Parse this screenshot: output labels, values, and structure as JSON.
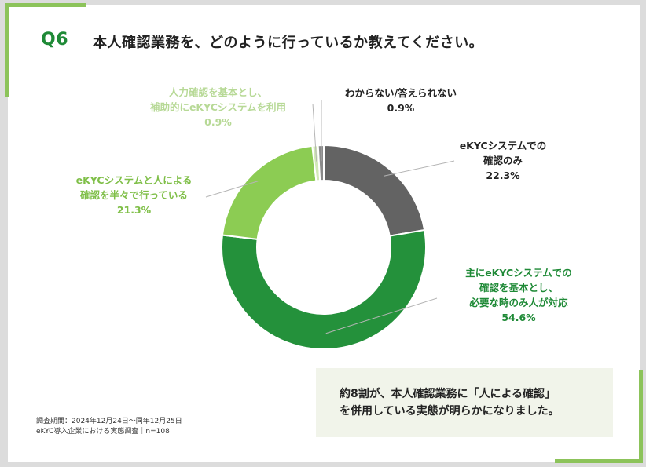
{
  "question": {
    "number": "Q6",
    "title": "本人確認業務を、どのように行っているか教えてください。"
  },
  "chart_data": {
    "type": "pie",
    "variant": "donut",
    "title": "本人確認業務を、どのように行っているか教えてください。",
    "slices": [
      {
        "lines": [
          "eKYCシステムでの",
          "確認のみ"
        ],
        "value": 22.3,
        "value_label": "22.3%",
        "color": "#636363",
        "label_color": "#222222"
      },
      {
        "lines": [
          "主にeKYCシステムでの",
          "確認を基本とし、",
          "必要な時のみ人が対応"
        ],
        "value": 54.6,
        "value_label": "54.6%",
        "color": "#24913b",
        "label_color": "#1f8a37"
      },
      {
        "lines": [
          "eKYCシステムと人による",
          "確認を半々で行っている"
        ],
        "value": 21.3,
        "value_label": "21.3%",
        "color": "#8ccc53",
        "label_color": "#7fbf48"
      },
      {
        "lines": [
          "人力確認を基本とし、",
          "補助的にeKYCシステムを利用"
        ],
        "value": 0.9,
        "value_label": "0.9%",
        "color": "#d2e9b7",
        "label_color": "#b7d996"
      },
      {
        "lines": [
          "わからない/答えられない"
        ],
        "value": 0.9,
        "value_label": "0.9%",
        "color": "#8a8a8a",
        "label_color": "#222222"
      }
    ]
  },
  "summary": {
    "line1": "約8割が、本人確認業務に「人による確認」",
    "line2": "を併用している実態が明らかになりました。"
  },
  "footnote": {
    "line1": "調査期間：2024年12月24日～同年12月25日",
    "line2": "eKYC導入企業における実態調査｜n=108"
  }
}
